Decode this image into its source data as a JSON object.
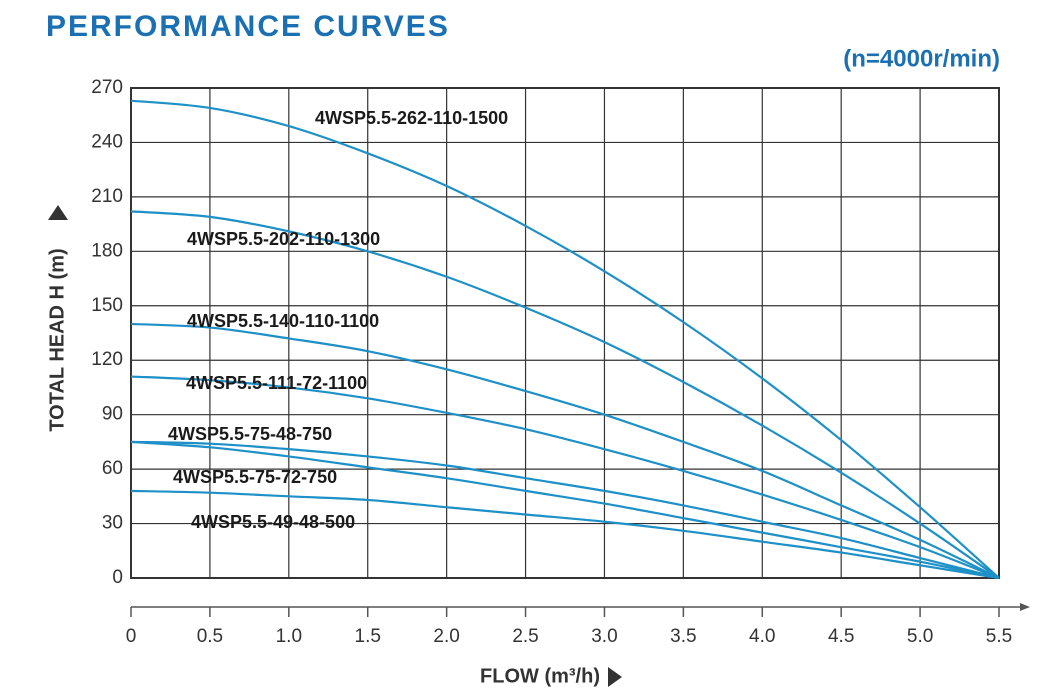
{
  "chart_data": {
    "type": "line",
    "title": "PERFORMANCE CURVES",
    "subtitle": "(n=4000r/min)",
    "x_label": "FLOW (m³/h)",
    "y_label": "TOTAL HEAD H (m)",
    "x": [
      0,
      0.5,
      1,
      1.5,
      2,
      2.5,
      3,
      3.5,
      4,
      4.5,
      5,
      5.5
    ],
    "xlim": [
      0,
      5.5
    ],
    "xticks": [
      0,
      0.5,
      {
        "value": 1,
        "label": "1.0"
      },
      1.5,
      {
        "value": 2,
        "label": "2.0"
      },
      2.5,
      {
        "value": 3,
        "label": "3.0"
      },
      3.5,
      {
        "value": 4,
        "label": "4.0"
      },
      4.5,
      {
        "value": 5,
        "label": "5.0"
      },
      5.5
    ],
    "ylim": [
      0,
      270
    ],
    "yticks": [
      0,
      30,
      60,
      90,
      120,
      150,
      180,
      210,
      240,
      270
    ],
    "grid": true,
    "series": [
      {
        "name": "4WSP5.5-262-110-1500",
        "color": "#1e90c8",
        "values": [
          263,
          259,
          249,
          234,
          216,
          194,
          169,
          141,
          110,
          76,
          39,
          0
        ]
      },
      {
        "name": "4WSP5.5-202-110-1300",
        "color": "#1e90c8",
        "values": [
          202,
          199,
          191,
          180,
          166,
          149,
          130,
          108,
          84,
          58,
          30,
          0
        ]
      },
      {
        "name": "4WSP5.5-140-110-1100",
        "color": "#1e90c8",
        "values": [
          140,
          138,
          132,
          125,
          115,
          103,
          90,
          75,
          59,
          40,
          21,
          0
        ]
      },
      {
        "name": "4WSP5.5-111-72-1100",
        "color": "#1e90c8",
        "values": [
          111,
          109,
          105,
          99,
          91,
          82,
          71,
          59,
          46,
          32,
          17,
          0
        ]
      },
      {
        "name": "4WSP5.5-75-48-750",
        "color": "#1e90c8",
        "values": [
          75,
          74,
          71,
          67,
          62,
          55,
          48,
          40,
          31,
          22,
          11,
          0
        ]
      },
      {
        "name": "4WSP5.5-75-72-750",
        "color": "#1e90c8",
        "values": [
          75,
          72,
          67,
          61,
          55,
          48,
          41,
          33,
          25,
          17,
          9,
          0
        ]
      },
      {
        "name": "4WSP5.5-49-48-500",
        "color": "#1e90c8",
        "values": [
          48,
          47,
          45,
          43,
          39,
          35,
          31,
          26,
          20,
          14,
          7,
          0
        ]
      }
    ]
  }
}
